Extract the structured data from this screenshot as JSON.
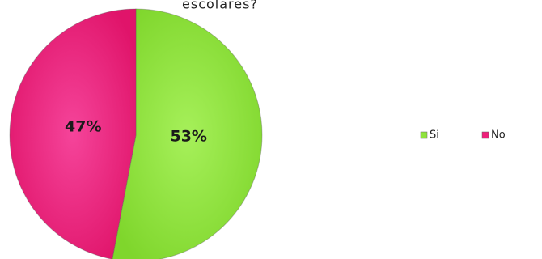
{
  "chart_data": {
    "type": "pie",
    "title": "escolares?",
    "categories": [
      "Si",
      "No"
    ],
    "values": [
      53,
      47
    ],
    "value_labels": [
      "53%",
      "47%"
    ],
    "colors": [
      "#8fe33c",
      "#ef1f7a"
    ],
    "legend": "right"
  }
}
